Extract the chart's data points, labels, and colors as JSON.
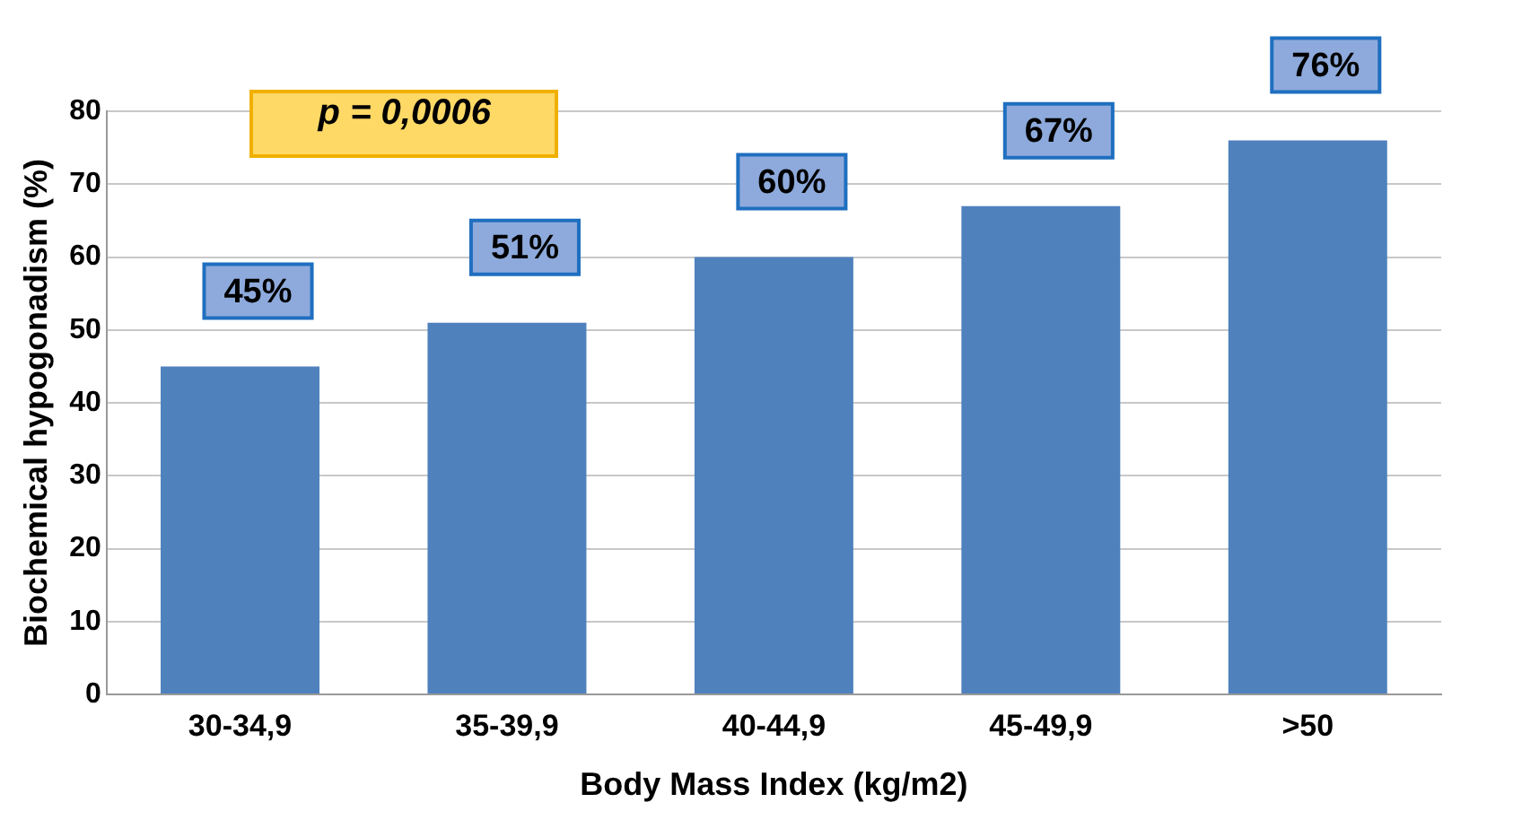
{
  "chart_data": {
    "type": "bar",
    "categories": [
      "30-34,9",
      "35-39,9",
      "40-44,9",
      "45-49,9",
      ">50"
    ],
    "values": [
      45,
      51,
      60,
      67,
      76
    ],
    "value_labels": [
      "45%",
      "51%",
      "60%",
      "67%",
      "76%"
    ],
    "color": "#4f81bd",
    "xlabel": "Body Mass Index (kg/m2)",
    "ylabel": "Biochemical hypogonadism (%)",
    "ylim": [
      0,
      80
    ],
    "yticks": [
      0,
      10,
      20,
      30,
      40,
      50,
      60,
      70,
      80
    ],
    "grid": "y",
    "annotations": [
      "p = 0,0006"
    ]
  }
}
